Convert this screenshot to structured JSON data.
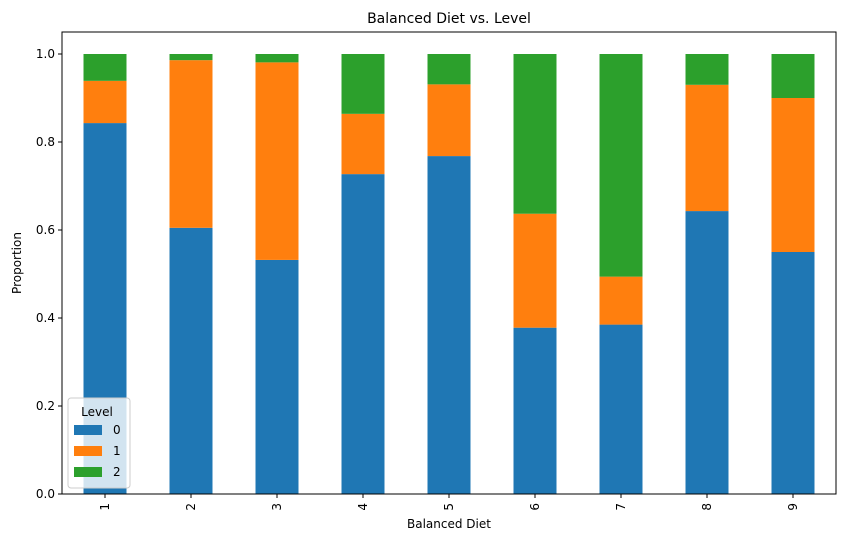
{
  "chart_data": {
    "type": "bar",
    "stacked": true,
    "title": "Balanced Diet vs. Level",
    "xlabel": "Balanced Diet",
    "ylabel": "Proportion",
    "categories": [
      "1",
      "2",
      "3",
      "4",
      "5",
      "6",
      "7",
      "8",
      "9"
    ],
    "ylim": [
      0,
      1.05
    ],
    "yticks": [
      "0.0",
      "0.2",
      "0.4",
      "0.6",
      "0.8",
      "1.0"
    ],
    "grid": false,
    "legend": {
      "title": "Level",
      "placement": "lower-left"
    },
    "series": [
      {
        "name": "0",
        "color": "#1f77b4",
        "values": [
          0.843,
          0.605,
          0.532,
          0.727,
          0.768,
          0.378,
          0.385,
          0.643,
          0.55
        ]
      },
      {
        "name": "1",
        "color": "#ff7f0e",
        "values": [
          0.096,
          0.381,
          0.449,
          0.137,
          0.163,
          0.259,
          0.109,
          0.287,
          0.35
        ]
      },
      {
        "name": "2",
        "color": "#2ca02c",
        "values": [
          0.061,
          0.014,
          0.019,
          0.136,
          0.069,
          0.363,
          0.506,
          0.07,
          0.1
        ]
      }
    ]
  }
}
